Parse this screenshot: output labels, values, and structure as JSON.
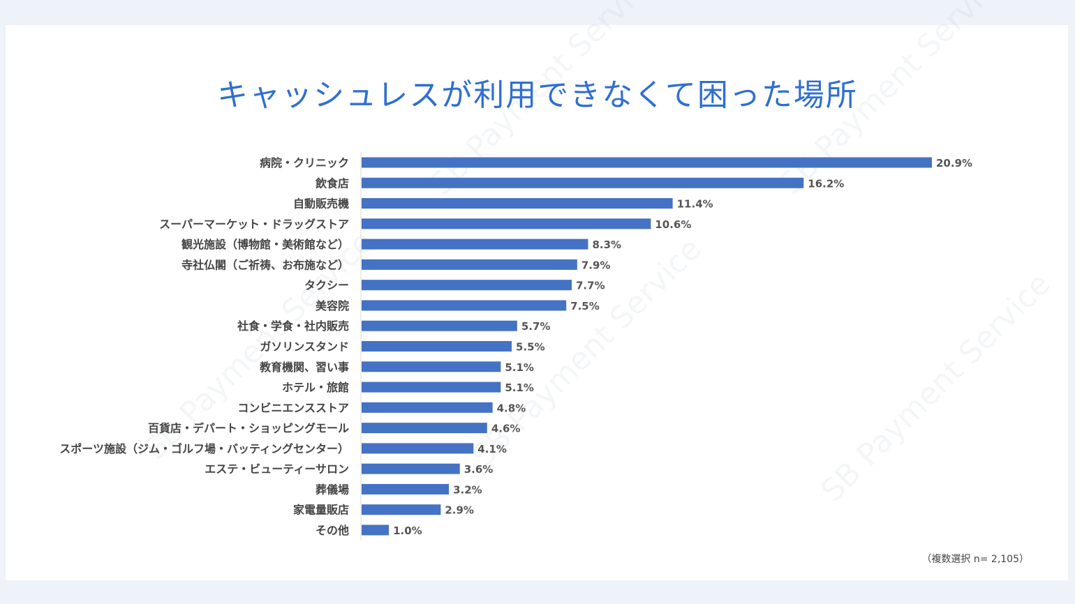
{
  "watermark": "SB Payment Service",
  "note": "（複数選択 n= 2,105）",
  "colors": {
    "bar": "#4472c4",
    "title": "#2f6fd0"
  },
  "chart_data": {
    "type": "bar",
    "orientation": "horizontal",
    "title": "キャッシュレスが利用できなくて困った場所",
    "categories": [
      "病院・クリニック",
      "飲食店",
      "自動販売機",
      "スーパーマーケット・ドラッグストア",
      "観光施設（博物館・美術館など）",
      "寺社仏閣（ご祈祷、お布施など）",
      "タクシー",
      "美容院",
      "社食・学食・社内販売",
      "ガソリンスタンド",
      "教育機関、習い事",
      "ホテル・旅館",
      "コンビニエンスストア",
      "百貨店・デパート・ショッピングモール",
      "スポーツ施設（ジム・ゴルフ場・バッティングセンター）",
      "エステ・ビューティーサロン",
      "葬儀場",
      "家電量販店",
      "その他"
    ],
    "values": [
      20.9,
      16.2,
      11.4,
      10.6,
      8.3,
      7.9,
      7.7,
      7.5,
      5.7,
      5.5,
      5.1,
      5.1,
      4.8,
      4.6,
      4.1,
      3.6,
      3.2,
      2.9,
      1.0
    ],
    "labels": [
      "20.9%",
      "16.2%",
      "11.4%",
      "10.6%",
      "8.3%",
      "7.9%",
      "7.7%",
      "7.5%",
      "5.7%",
      "5.5%",
      "5.1%",
      "5.1%",
      "4.8%",
      "4.6%",
      "4.1%",
      "3.6%",
      "3.2%",
      "2.9%",
      "1.0%"
    ],
    "unit": "%",
    "grid": false,
    "legend": "none"
  }
}
